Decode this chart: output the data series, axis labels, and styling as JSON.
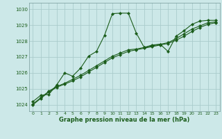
{
  "title": "Graphe pression niveau de la mer (hPa)",
  "bg_color": "#cce8e8",
  "grid_color": "#aacccc",
  "line_color": "#1a5c1a",
  "marker_color": "#1a5c1a",
  "xlim": [
    -0.5,
    23.5
  ],
  "ylim": [
    1023.6,
    1030.4
  ],
  "yticks": [
    1024,
    1025,
    1026,
    1027,
    1028,
    1029,
    1030
  ],
  "xticks": [
    0,
    1,
    2,
    3,
    4,
    5,
    6,
    7,
    8,
    9,
    10,
    11,
    12,
    13,
    14,
    15,
    16,
    17,
    18,
    19,
    20,
    21,
    22,
    23
  ],
  "series1_x": [
    0,
    1,
    2,
    3,
    4,
    5,
    6,
    7,
    8,
    9,
    10,
    11,
    12,
    13,
    14,
    15,
    16,
    17,
    18,
    19,
    20,
    21,
    22,
    23
  ],
  "series1_y": [
    1024.2,
    1024.6,
    1024.65,
    1025.25,
    1026.0,
    1025.8,
    1026.3,
    1027.05,
    1027.35,
    1028.35,
    1029.72,
    1029.75,
    1029.75,
    1028.5,
    1027.6,
    1027.75,
    1027.8,
    1027.35,
    1028.3,
    1028.65,
    1029.05,
    1029.25,
    1029.3,
    1029.3
  ],
  "series2_x": [
    0,
    1,
    2,
    3,
    4,
    5,
    6,
    7,
    8,
    9,
    10,
    11,
    12,
    13,
    14,
    15,
    16,
    17,
    18,
    19,
    20,
    21,
    22,
    23
  ],
  "series2_y": [
    1024.0,
    1024.4,
    1024.8,
    1025.1,
    1025.3,
    1025.5,
    1025.75,
    1026.05,
    1026.35,
    1026.65,
    1026.95,
    1027.15,
    1027.35,
    1027.45,
    1027.55,
    1027.65,
    1027.75,
    1027.85,
    1028.05,
    1028.3,
    1028.6,
    1028.85,
    1029.05,
    1029.15
  ],
  "series3_x": [
    0,
    1,
    2,
    3,
    4,
    5,
    6,
    7,
    8,
    9,
    10,
    11,
    12,
    13,
    14,
    15,
    16,
    17,
    18,
    19,
    20,
    21,
    22,
    23
  ],
  "series3_y": [
    1024.05,
    1024.45,
    1024.85,
    1025.15,
    1025.35,
    1025.6,
    1025.85,
    1026.15,
    1026.45,
    1026.75,
    1027.05,
    1027.25,
    1027.45,
    1027.5,
    1027.6,
    1027.7,
    1027.8,
    1027.9,
    1028.15,
    1028.45,
    1028.75,
    1028.95,
    1029.15,
    1029.2
  ]
}
